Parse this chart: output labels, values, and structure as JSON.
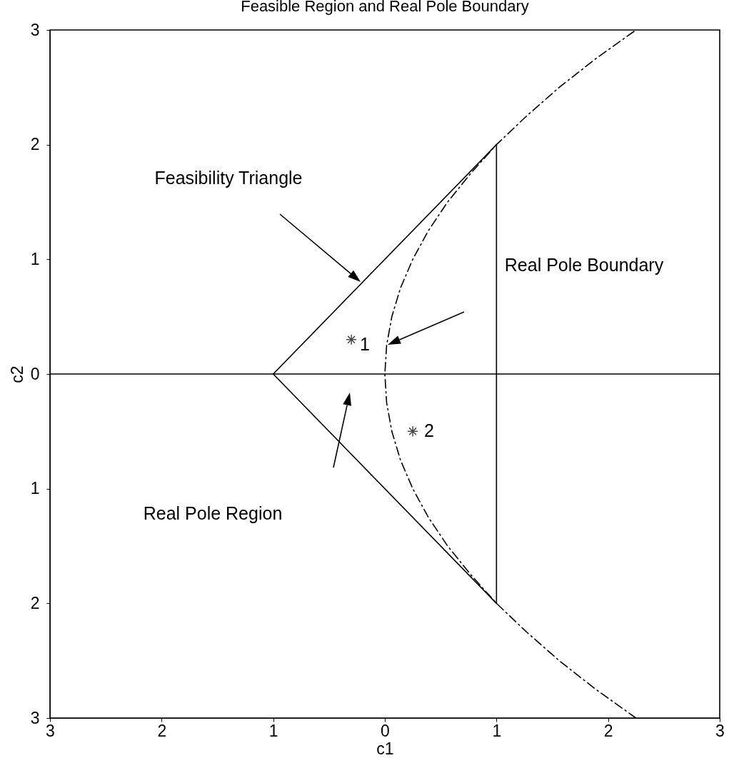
{
  "chart_data": {
    "type": "line",
    "title": "Feasible Region and Real Pole Boundary",
    "xlabel": "c1",
    "ylabel": "c2",
    "xlim": [
      -3,
      3
    ],
    "ylim": [
      -3,
      3
    ],
    "xticks": [
      {
        "value": -3,
        "label": "3"
      },
      {
        "value": -2,
        "label": "2"
      },
      {
        "value": -1,
        "label": "1"
      },
      0,
      1,
      2,
      3
    ],
    "yticks": [
      {
        "value": -3,
        "label": "3"
      },
      {
        "value": -2,
        "label": "2"
      },
      {
        "value": -1,
        "label": "1"
      },
      0,
      1,
      2,
      3
    ],
    "grid": false,
    "ref_lines": [
      {
        "axis": "y",
        "value": 0,
        "color": "#000000",
        "line_style": "solid"
      }
    ],
    "series": [
      {
        "color": "#000000",
        "line_style": "solid",
        "x": [
          -1,
          1,
          1
        ],
        "values": [
          0,
          2,
          -2
        ]
      },
      {
        "color": "#000000",
        "line_style": "solid",
        "x": [
          1,
          -1
        ],
        "values": [
          -2,
          0
        ]
      },
      {
        "color": "#000000",
        "line_style": "dashed",
        "x": [
          2.25,
          1.89,
          1.5625,
          1.27,
          1,
          0.77,
          0.5625,
          0.39,
          0.25,
          0.14,
          0.0625,
          0.016,
          0,
          0.016,
          0.0625,
          0.14,
          0.25,
          0.39,
          0.5625,
          0.77,
          1,
          1.27,
          1.5625,
          1.89,
          2.25
        ],
        "values": [
          -3,
          -2.75,
          -2.5,
          -2.25,
          -2,
          -1.75,
          -1.5,
          -1.25,
          -1,
          -0.75,
          -0.5,
          -0.25,
          0,
          0.25,
          0.5,
          0.75,
          1,
          1.25,
          1.5,
          1.75,
          2,
          2.25,
          2.5,
          2.75,
          3
        ]
      },
      {
        "type": "scatter",
        "color": "#000000",
        "marker": "cross",
        "x": [
          -0.3,
          0.25
        ],
        "values": [
          0.3,
          -0.5
        ]
      }
    ],
    "annotations": [
      "Feasibility Triangle",
      "Real Pole Boundary",
      "Real Pole Region",
      {
        "text": "1",
        "x": -0.3,
        "y": 0.3
      },
      {
        "text": "2",
        "x": 0.25,
        "y": -0.5
      }
    ]
  }
}
